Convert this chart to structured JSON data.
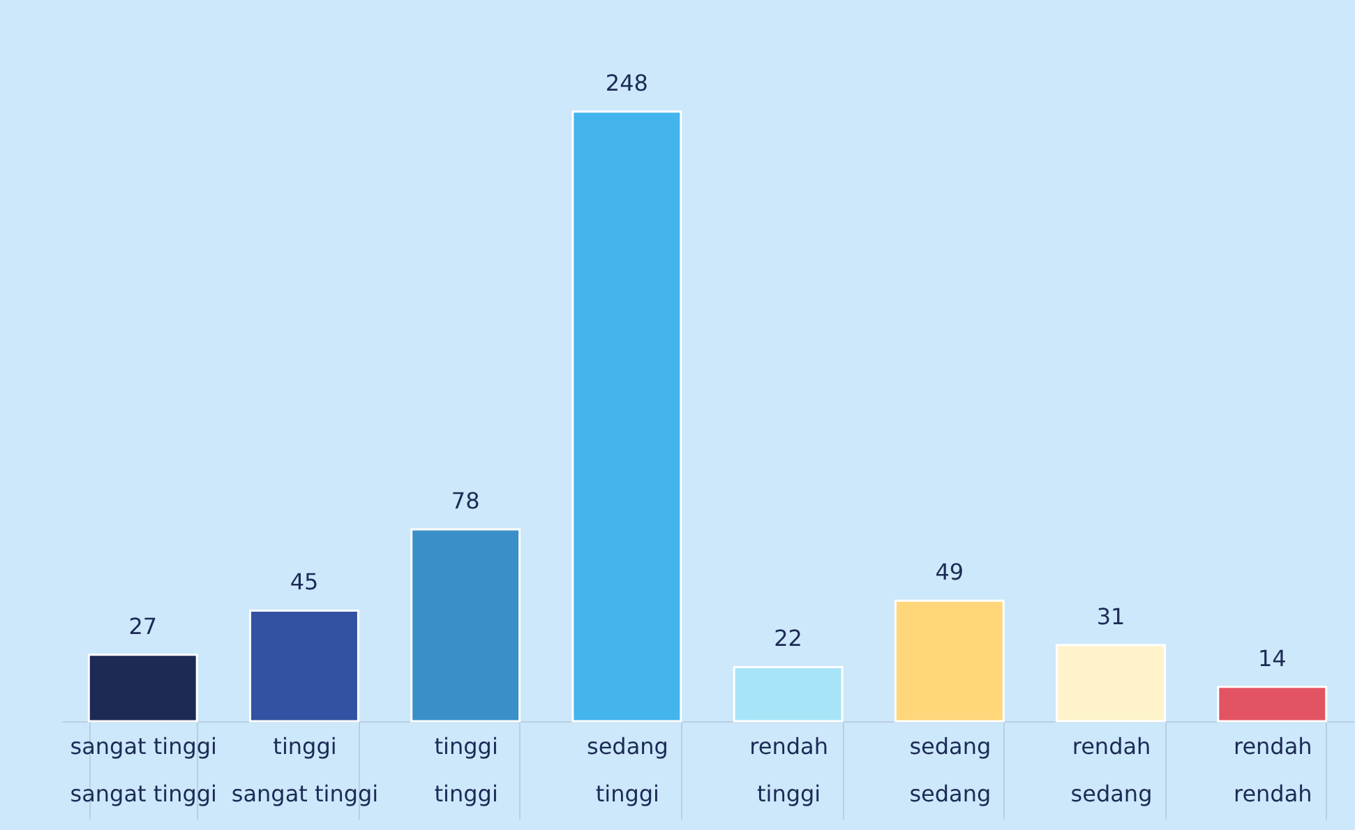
{
  "chart_data": {
    "type": "bar",
    "categories": [
      "sangat tinggi\nsangat tinggi",
      "tinggi\nsangat tinggi",
      "tinggi\ntinggi",
      "sedang\ntinggi",
      "rendah\ntinggi",
      "sedang\nsedang",
      "rendah\nsedang",
      "rendah\nrendah"
    ],
    "values": [
      27,
      45,
      78,
      248,
      22,
      49,
      31,
      14
    ],
    "colors": [
      "#1c2a55",
      "#3352a3",
      "#3a8fc8",
      "#44b4ec",
      "#a8e4f8",
      "#ffd679",
      "#fff3cc",
      "#e25461"
    ],
    "data_labels": true,
    "grid": false
  }
}
